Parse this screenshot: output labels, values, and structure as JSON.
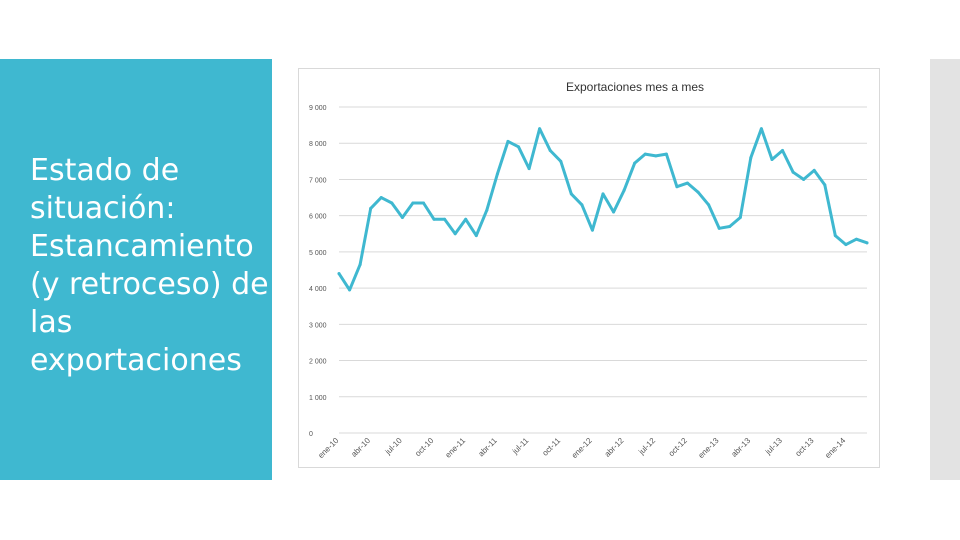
{
  "slide": {
    "title": "Estado de situación: Estancamiento (y retroceso) de las exportaciones"
  },
  "colors": {
    "panel": "#3fb8d0",
    "line": "#3fb8d0",
    "gridline": "#d9d9d9",
    "side_strip": "#e3e3e3"
  },
  "chart_data": {
    "type": "line",
    "title": "Exportaciones mes a mes",
    "xlabel": "",
    "ylabel": "",
    "ylim": [
      0,
      9000
    ],
    "yticks": [
      0,
      1000,
      2000,
      3000,
      4000,
      5000,
      6000,
      7000,
      8000,
      9000
    ],
    "ytick_labels": [
      "0",
      "1 000",
      "2 000",
      "3 000",
      "4 000",
      "5 000",
      "6 000",
      "7 000",
      "8 000",
      "9 000"
    ],
    "grid": true,
    "legend": "none",
    "xtick_labels": [
      "ene-10",
      "abr-10",
      "jul-10",
      "oct-10",
      "ene-11",
      "abr-11",
      "jul-11",
      "oct-11",
      "ene-12",
      "abr-12",
      "jul-12",
      "oct-12",
      "ene-13",
      "abr-13",
      "jul-13",
      "oct-13",
      "ene-14"
    ],
    "xtick_indices": [
      0,
      3,
      6,
      9,
      12,
      15,
      18,
      21,
      24,
      27,
      30,
      33,
      36,
      39,
      42,
      45,
      48
    ],
    "series": [
      {
        "values": [
          4400,
          3950,
          4650,
          6200,
          6500,
          6350,
          5950,
          6350,
          6350,
          5900,
          5900,
          5500,
          5900,
          5450,
          6150,
          7150,
          8050,
          7900,
          7300,
          8400,
          7800,
          7500,
          6600,
          6300,
          5600,
          6600,
          6100,
          6700,
          7450,
          7700,
          7650,
          7700,
          6800,
          6900,
          6650,
          6300,
          5650,
          5700,
          5950,
          7600,
          8400,
          7550,
          7800,
          7200,
          7000,
          7250,
          6850,
          5450,
          5200,
          5350,
          5250
        ]
      }
    ]
  }
}
